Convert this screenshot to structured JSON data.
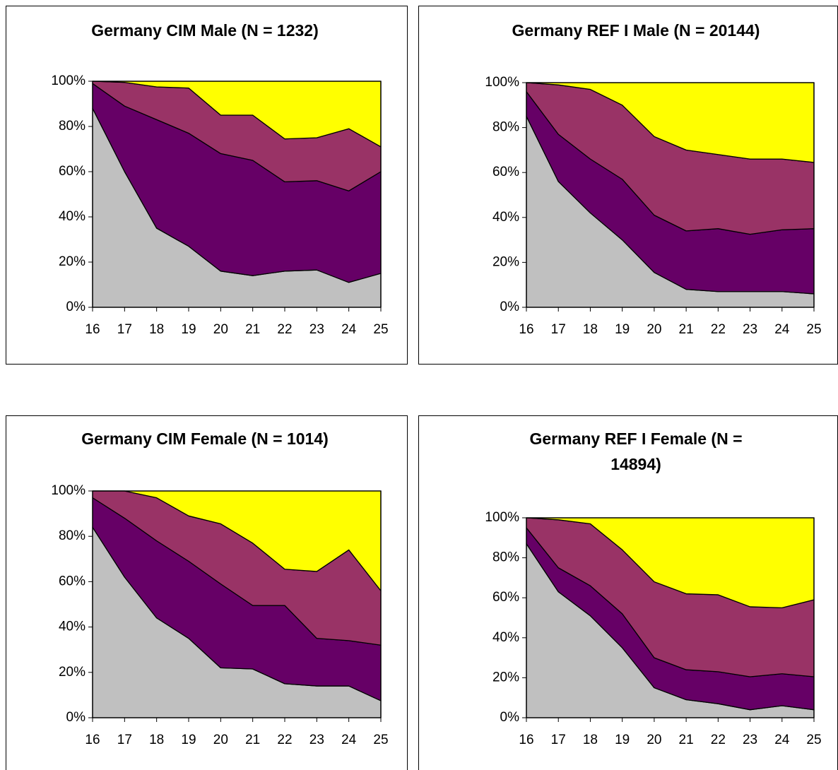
{
  "chart_data": [
    {
      "type": "stacked_area",
      "title": "Germany CIM Male (N = 1232)",
      "categories": [
        "16",
        "17",
        "18",
        "19",
        "20",
        "21",
        "22",
        "23",
        "24",
        "25"
      ],
      "series": [
        {
          "color": "#c0c0c0",
          "values": [
            88,
            60,
            35,
            27,
            16,
            14,
            16,
            16.5,
            11,
            15
          ]
        },
        {
          "color": "#660066",
          "values": [
            11,
            29,
            48,
            50,
            52,
            51,
            39.5,
            39.5,
            40.5,
            45
          ]
        },
        {
          "color": "#993366",
          "values": [
            1,
            10.5,
            14.5,
            20,
            17,
            20,
            19,
            19,
            27.5,
            11
          ]
        },
        {
          "color": "#ffff00",
          "values": [
            0,
            0.5,
            2.5,
            3,
            15,
            15,
            25.5,
            25,
            21,
            29
          ]
        }
      ],
      "ylim": [
        0,
        100
      ],
      "yticks": [
        {
          "value": 0,
          "label": "0%"
        },
        {
          "value": 20,
          "label": "20%"
        },
        {
          "value": 40,
          "label": "40%"
        },
        {
          "value": 60,
          "label": "60%"
        },
        {
          "value": 80,
          "label": "80%"
        },
        {
          "value": 100,
          "label": "100%"
        }
      ]
    },
    {
      "type": "stacked_area",
      "title": "Germany REF I Male (N = 20144)",
      "categories": [
        "16",
        "17",
        "18",
        "19",
        "20",
        "21",
        "22",
        "23",
        "24",
        "25"
      ],
      "series": [
        {
          "color": "#c0c0c0",
          "values": [
            85,
            56,
            42,
            30,
            15.5,
            8,
            7,
            7,
            7,
            6
          ]
        },
        {
          "color": "#660066",
          "values": [
            11,
            21,
            24,
            27,
            25.5,
            26,
            28,
            25.5,
            27.5,
            29
          ]
        },
        {
          "color": "#993366",
          "values": [
            4,
            22,
            31,
            33,
            35,
            36,
            33,
            33.5,
            31.5,
            29.5
          ]
        },
        {
          "color": "#ffff00",
          "values": [
            0,
            1,
            3,
            10,
            24,
            30,
            32,
            34,
            34,
            35.5
          ]
        }
      ],
      "ylim": [
        0,
        100
      ],
      "yticks": [
        {
          "value": 0,
          "label": "0%"
        },
        {
          "value": 20,
          "label": "20%"
        },
        {
          "value": 40,
          "label": "40%"
        },
        {
          "value": 60,
          "label": "60%"
        },
        {
          "value": 80,
          "label": "80%"
        },
        {
          "value": 100,
          "label": "100%"
        }
      ]
    },
    {
      "type": "stacked_area",
      "title": "Germany CIM Female (N = 1014)",
      "categories": [
        "16",
        "17",
        "18",
        "19",
        "20",
        "21",
        "22",
        "23",
        "24",
        "25"
      ],
      "series": [
        {
          "color": "#c0c0c0",
          "values": [
            84,
            62,
            44,
            35,
            22,
            21.5,
            15,
            14,
            14,
            7.5
          ]
        },
        {
          "color": "#660066",
          "values": [
            13,
            26,
            34,
            34,
            37,
            28,
            34.5,
            21,
            20,
            24.5
          ]
        },
        {
          "color": "#993366",
          "values": [
            3,
            12,
            19,
            20,
            26.5,
            27.5,
            16,
            29.5,
            40,
            24
          ]
        },
        {
          "color": "#ffff00",
          "values": [
            0,
            0,
            3,
            11,
            14.5,
            23,
            34.5,
            35.5,
            26,
            44
          ]
        }
      ],
      "ylim": [
        0,
        100
      ],
      "yticks": [
        {
          "value": 0,
          "label": "0%"
        },
        {
          "value": 20,
          "label": "20%"
        },
        {
          "value": 40,
          "label": "40%"
        },
        {
          "value": 60,
          "label": "60%"
        },
        {
          "value": 80,
          "label": "80%"
        },
        {
          "value": 100,
          "label": "100%"
        }
      ]
    },
    {
      "type": "stacked_area",
      "title": "Germany REF I Female (N = 14894)",
      "categories": [
        "16",
        "17",
        "18",
        "19",
        "20",
        "21",
        "22",
        "23",
        "24",
        "25"
      ],
      "series": [
        {
          "color": "#c0c0c0",
          "values": [
            87,
            63,
            51,
            35,
            15,
            9,
            7,
            4,
            6,
            4
          ]
        },
        {
          "color": "#660066",
          "values": [
            8,
            12,
            15,
            17,
            15,
            15,
            16,
            16.5,
            16,
            16.5
          ]
        },
        {
          "color": "#993366",
          "values": [
            5,
            24,
            31,
            32,
            38,
            38,
            38.5,
            35,
            33,
            38.5
          ]
        },
        {
          "color": "#ffff00",
          "values": [
            0,
            1,
            3,
            16,
            32,
            38,
            38.5,
            44.5,
            45,
            41
          ]
        }
      ],
      "ylim": [
        0,
        100
      ],
      "yticks": [
        {
          "value": 0,
          "label": "0%"
        },
        {
          "value": 20,
          "label": "20%"
        },
        {
          "value": 40,
          "label": "40%"
        },
        {
          "value": 60,
          "label": "60%"
        },
        {
          "value": 80,
          "label": "80%"
        },
        {
          "value": 100,
          "label": "100%"
        }
      ]
    }
  ]
}
